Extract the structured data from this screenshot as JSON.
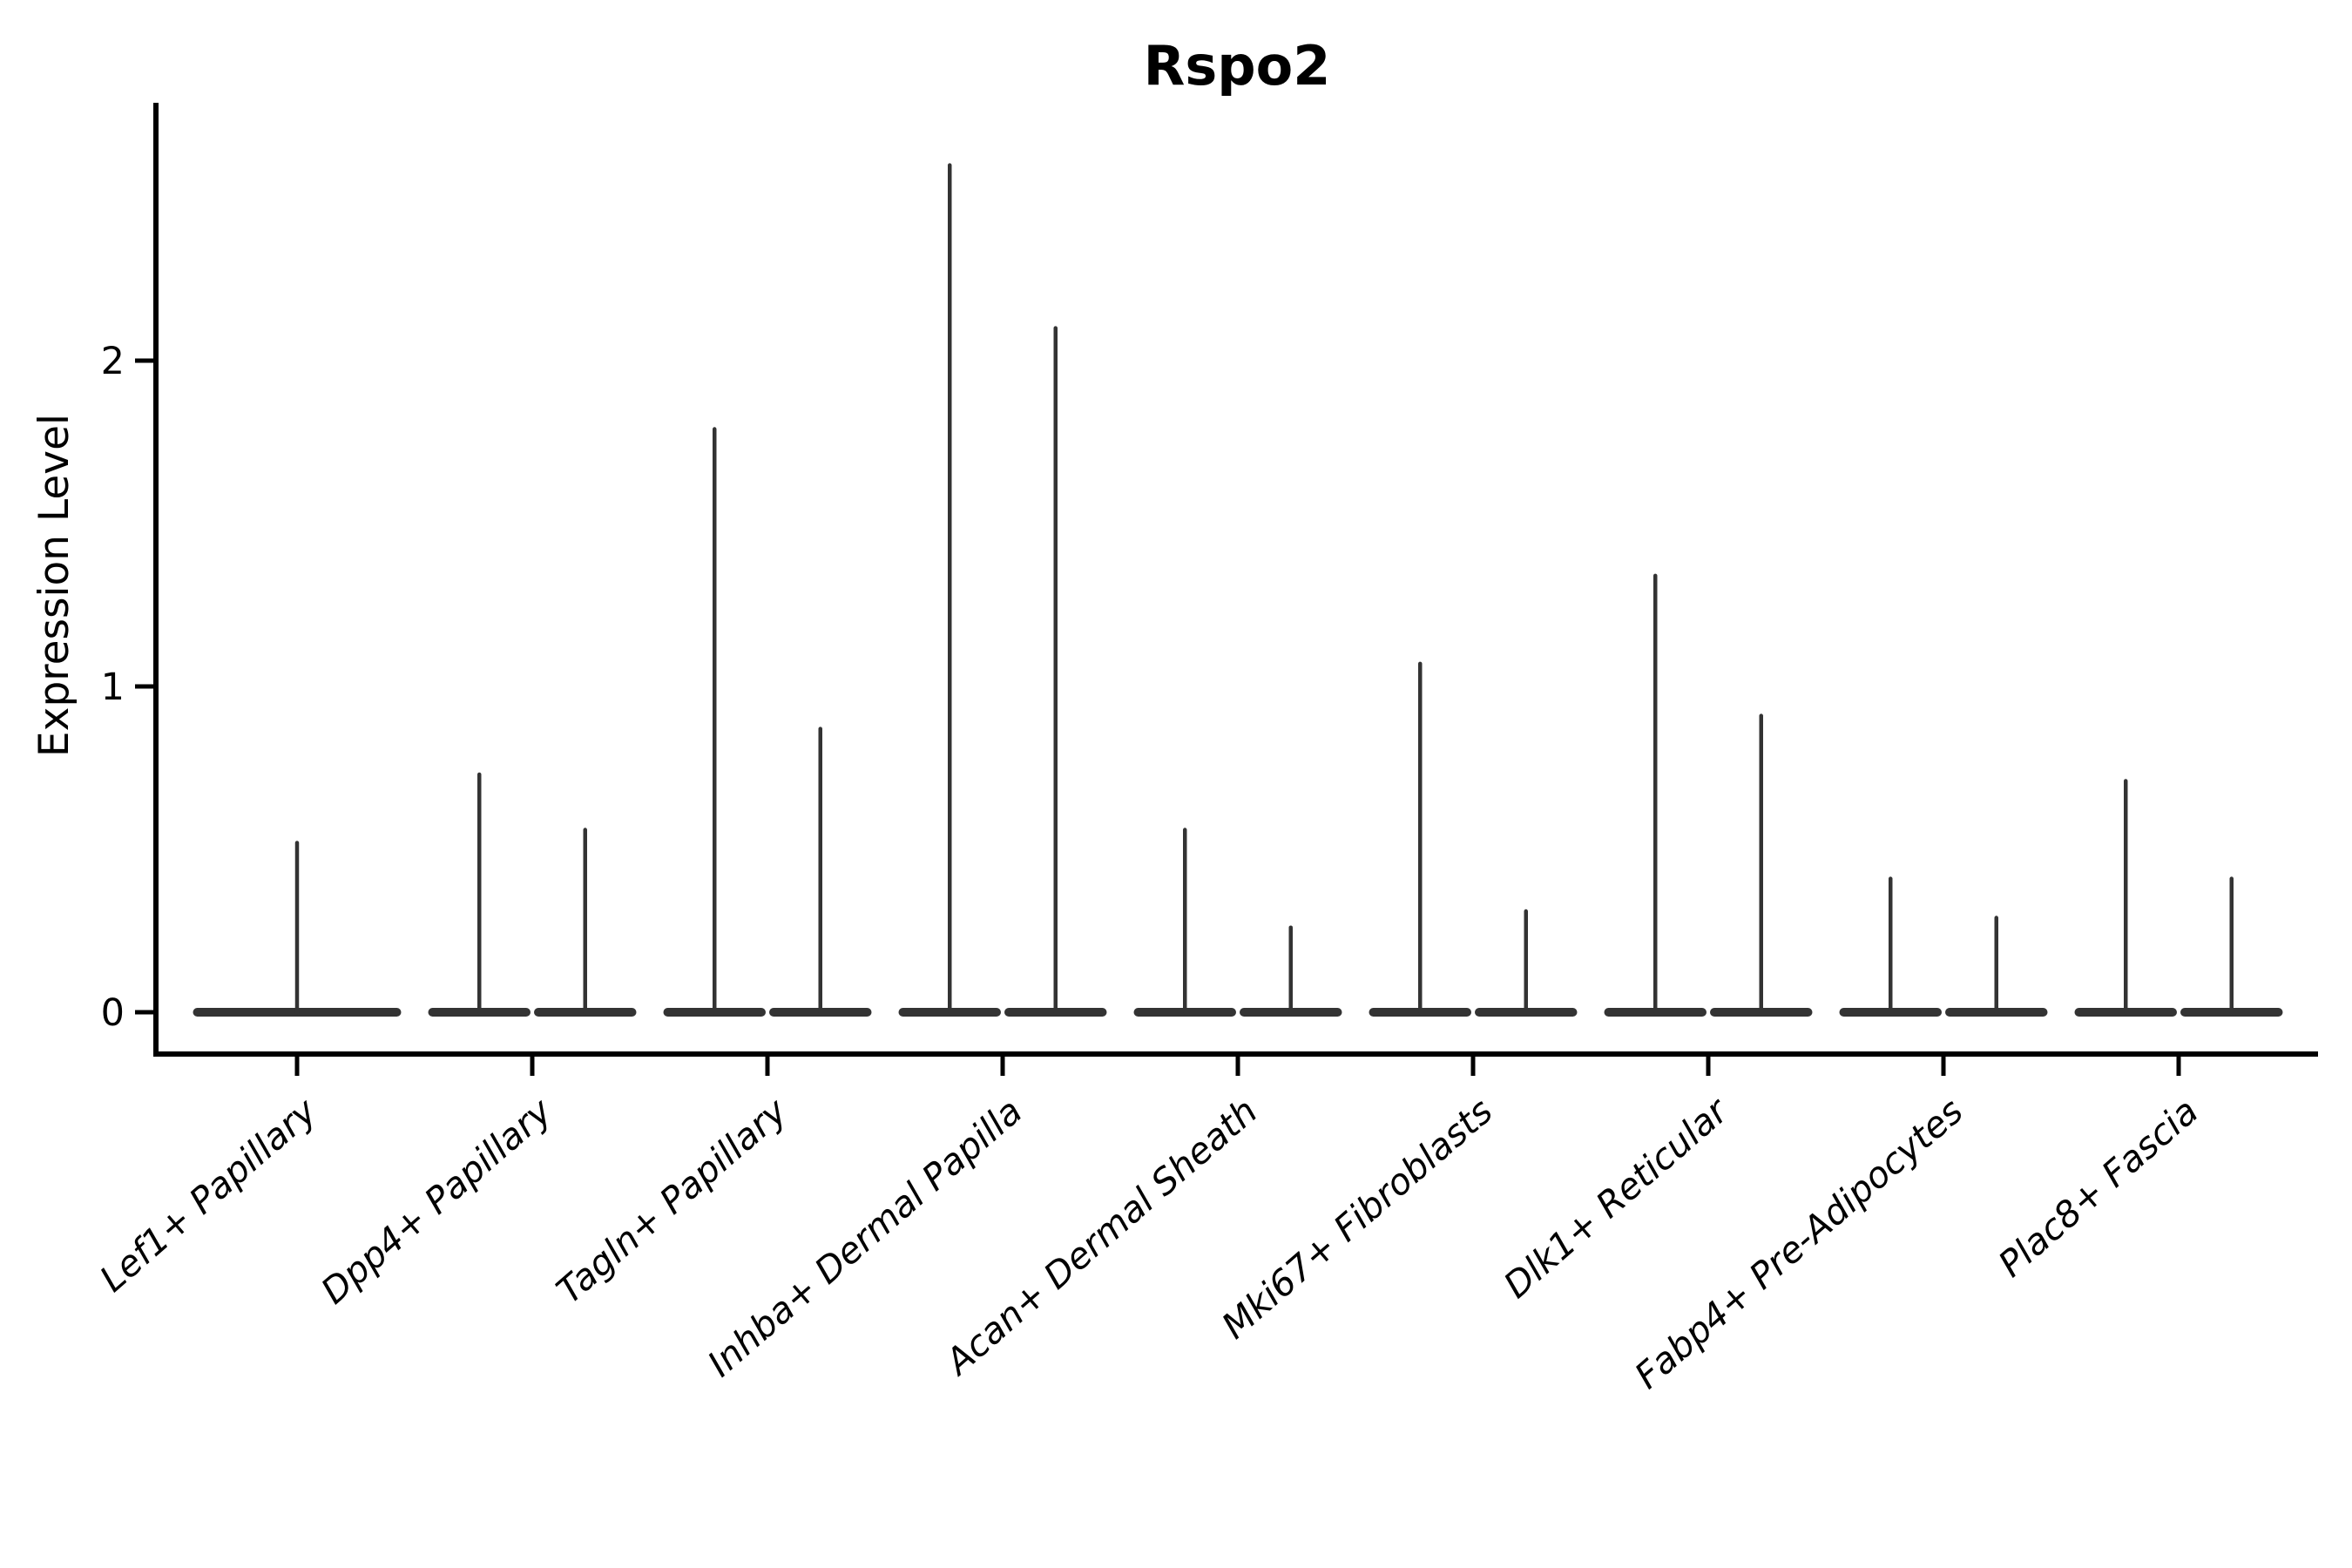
{
  "title": "Rspo2",
  "ylabel": "Expression Level",
  "chart_data": {
    "type": "violin",
    "title": "Rspo2",
    "xlabel": "",
    "ylabel": "Expression Level",
    "categories": [
      "Lef1+ Papillary",
      "Dpp4+ Papillary",
      "Tagln+ Papillary",
      "Inhba+ Dermal Papilla",
      "Acan+ Dermal Sheath",
      "Mki67+ Fibroblasts",
      "Dlk1+ Reticular",
      "Fabp4+ Pre-Adipocytes",
      "Plac8+ Fascia"
    ],
    "violins_per_category": [
      {
        "category": "Lef1+ Papillary",
        "spike_maxima": [
          0.52
        ]
      },
      {
        "category": "Dpp4+ Papillary",
        "spike_maxima": [
          0.73,
          0.56
        ]
      },
      {
        "category": "Tagln+ Papillary",
        "spike_maxima": [
          1.79,
          0.87
        ]
      },
      {
        "category": "Inhba+ Dermal Papilla",
        "spike_maxima": [
          2.6,
          2.1
        ]
      },
      {
        "category": "Acan+ Dermal Sheath",
        "spike_maxima": [
          0.56,
          0.26
        ]
      },
      {
        "category": "Mki67+ Fibroblasts",
        "spike_maxima": [
          1.07,
          0.31
        ]
      },
      {
        "category": "Dlk1+ Reticular",
        "spike_maxima": [
          1.34,
          0.91
        ]
      },
      {
        "category": "Fabp4+ Pre-Adipocytes",
        "spike_maxima": [
          0.41,
          0.29
        ]
      },
      {
        "category": "Plac8+ Fascia",
        "spike_maxima": [
          0.71,
          0.41
        ]
      }
    ],
    "shape_note": "Each violin is a flat pancake of density at 0 with a thin spike rising to its maximum expression value; categories 2-9 contain two half-width violins side by side, category 1 contains a single full-width violin.",
    "yticks": [
      "0",
      "1",
      "2"
    ],
    "ytick_values": [
      0,
      1,
      2
    ],
    "ylim": [
      -0.13,
      2.79
    ],
    "grid": false,
    "legend": "none"
  },
  "colors": {
    "violin_stroke": "#333333",
    "axis": "#000000",
    "background": "#ffffff"
  }
}
